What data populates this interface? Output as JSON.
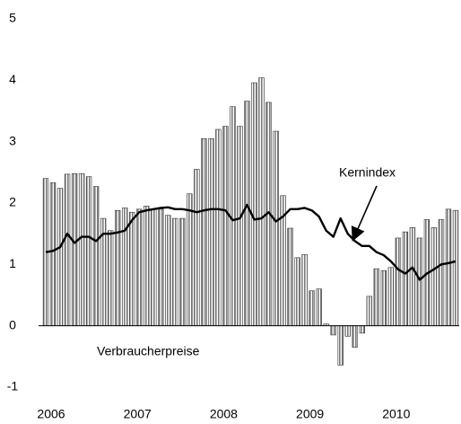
{
  "chart_data": {
    "type": "bar",
    "categories": [
      "2006",
      null,
      null,
      null,
      null,
      null,
      null,
      null,
      null,
      null,
      null,
      null,
      "2007",
      null,
      null,
      null,
      null,
      null,
      null,
      null,
      null,
      null,
      null,
      null,
      "2008",
      null,
      null,
      null,
      null,
      null,
      null,
      null,
      null,
      null,
      null,
      null,
      "2009",
      null,
      null,
      null,
      null,
      null,
      null,
      null,
      null,
      null,
      null,
      null,
      "2010",
      null,
      null,
      null,
      null,
      null,
      null,
      null,
      null,
      null
    ],
    "series": [
      {
        "name": "Verbraucherpreise",
        "type": "bar",
        "color": "#888888",
        "values": [
          2.4,
          2.33,
          2.24,
          2.47,
          2.48,
          2.48,
          2.43,
          2.27,
          1.75,
          1.55,
          1.88,
          1.92,
          1.85,
          1.9,
          1.95,
          1.9,
          1.9,
          1.8,
          1.75,
          1.75,
          2.15,
          2.55,
          3.05,
          3.05,
          3.2,
          3.25,
          3.57,
          3.25,
          3.66,
          3.96,
          4.04,
          3.64,
          3.17,
          2.12,
          1.59,
          1.11,
          1.16,
          0.57,
          0.6,
          0.03,
          -0.15,
          -0.64,
          -0.17,
          -0.35,
          -0.12,
          0.48,
          0.93,
          0.9,
          0.95,
          1.43,
          1.53,
          1.6,
          1.43,
          1.73,
          1.6,
          1.73,
          1.9,
          1.88
        ]
      },
      {
        "name": "Kernindex",
        "type": "line",
        "color": "#000000",
        "values": [
          1.2,
          1.22,
          1.28,
          1.5,
          1.35,
          1.45,
          1.45,
          1.38,
          1.5,
          1.5,
          1.52,
          1.55,
          1.72,
          1.85,
          1.88,
          1.9,
          1.92,
          1.93,
          1.9,
          1.9,
          1.88,
          1.85,
          1.88,
          1.9,
          1.9,
          1.88,
          1.72,
          1.75,
          1.97,
          1.73,
          1.75,
          1.85,
          1.7,
          1.78,
          1.9,
          1.9,
          1.92,
          1.88,
          1.78,
          1.55,
          1.45,
          1.75,
          1.5,
          1.38,
          1.3,
          1.3,
          1.2,
          1.15,
          1.05,
          0.92,
          0.85,
          0.95,
          0.75,
          0.85,
          0.92,
          1.0,
          1.02,
          1.05
        ]
      }
    ],
    "ylim": [
      -1,
      5
    ],
    "yticks": [
      -1,
      0,
      1,
      2,
      3,
      4,
      5
    ],
    "grid": false
  }
}
